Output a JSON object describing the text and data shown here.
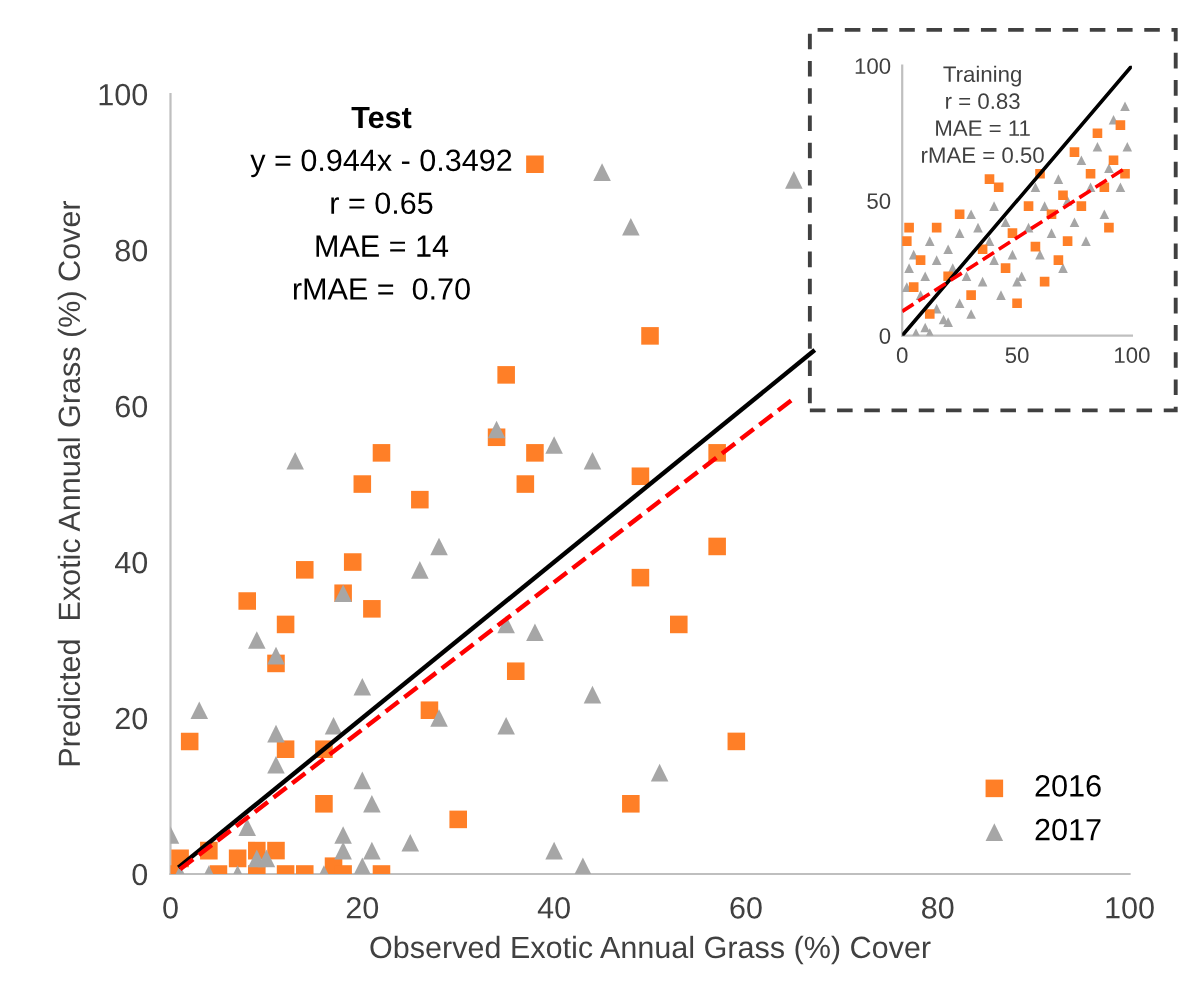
{
  "chart_data": [
    {
      "type": "scatter",
      "xlabel": "Observed Exotic Annual Grass (%) Cover",
      "ylabel": "Predicted  Exotic Annual Grass (%) Cover",
      "xlim": [
        0,
        100
      ],
      "ylim": [
        0,
        100
      ],
      "xticks": [
        0,
        20,
        40,
        60,
        80,
        100
      ],
      "yticks": [
        0,
        20,
        40,
        60,
        80,
        100
      ],
      "grid": false,
      "legend": "bottom right",
      "annotations": [
        "Test",
        "y = 0.944x - 0.3492",
        "r = 0.65",
        "MAE = 14",
        "rMAE =  0.70"
      ],
      "series": [
        {
          "name": "2016",
          "color": "#ff7f27",
          "marker": "square",
          "x": [
            35,
            34,
            38,
            38,
            22,
            20,
            26,
            37,
            14,
            19,
            8,
            12,
            18,
            21,
            11,
            36,
            27,
            2,
            12,
            16,
            16,
            30,
            1,
            4,
            7,
            9,
            11,
            17,
            0,
            5,
            9,
            12,
            14,
            18,
            22,
            50,
            49,
            57,
            57,
            49,
            53,
            59,
            48
          ],
          "values": [
            64,
            56,
            91,
            54,
            54,
            50,
            48,
            50,
            39,
            40,
            35,
            32,
            36,
            34,
            27,
            26,
            21,
            17,
            16,
            16,
            9,
            7,
            2,
            3,
            2,
            3,
            3,
            1,
            0,
            0,
            0,
            0,
            0,
            0,
            0,
            69,
            51,
            54,
            42,
            38,
            32,
            17,
            9
          ]
        },
        {
          "name": "2017",
          "color": "#a6a6a6",
          "marker": "triangle",
          "x": [
            0,
            3,
            13,
            34,
            28,
            26,
            18,
            9,
            11,
            35,
            38,
            20,
            17,
            28,
            35,
            11,
            11,
            20,
            21,
            8,
            18,
            25,
            18,
            21,
            9,
            10,
            20,
            1,
            4,
            7,
            16,
            45,
            65,
            48,
            40,
            44,
            44,
            51,
            40,
            43
          ],
          "values": [
            5,
            21,
            53,
            57,
            42,
            39,
            36,
            30,
            28,
            32,
            31,
            24,
            19,
            20,
            19,
            18,
            14,
            12,
            9,
            6,
            5,
            4,
            3,
            3,
            2,
            2,
            1,
            0,
            0,
            0,
            0,
            90,
            89,
            83,
            55,
            53,
            23,
            13,
            3,
            1
          ]
        },
        {
          "type": "line",
          "color": "#000000",
          "line_style": "solid",
          "marker": "none",
          "x": [
            1,
            67
          ],
          "values": [
            1,
            67
          ]
        },
        {
          "type": "line",
          "color": "#ff0000",
          "line_style": "dashed",
          "marker": "none",
          "x": [
            1,
            65
          ],
          "values": [
            0.6,
            61
          ]
        }
      ]
    },
    {
      "type": "scatter",
      "title": "Training",
      "annotations": [
        "r = 0.83",
        "MAE = 11",
        "rMAE = 0.50"
      ],
      "xlim": [
        0,
        100
      ],
      "ylim": [
        0,
        100
      ],
      "xticks": [
        0,
        50,
        100
      ],
      "yticks": [
        0,
        50,
        100
      ],
      "grid": false,
      "series": [
        {
          "color": "#a6a6a6",
          "marker": "triangle",
          "x": [
            6,
            2,
            3,
            12,
            5,
            8,
            10,
            10,
            12,
            15,
            15,
            18,
            20,
            20,
            22,
            25,
            25,
            28,
            30,
            30,
            33,
            35,
            38,
            40,
            40,
            43,
            45,
            48,
            50,
            52,
            55,
            58,
            60,
            62,
            65,
            68,
            70,
            72,
            75,
            78,
            80,
            82,
            85,
            88,
            90,
            92,
            95,
            97,
            98
          ],
          "values": [
            1,
            18,
            25,
            1,
            30,
            15,
            3,
            22,
            35,
            10,
            28,
            6,
            5,
            32,
            25,
            12,
            38,
            22,
            45,
            8,
            40,
            20,
            35,
            28,
            48,
            15,
            42,
            30,
            20,
            22,
            40,
            55,
            30,
            48,
            38,
            58,
            25,
            50,
            42,
            65,
            35,
            55,
            70,
            45,
            62,
            80,
            55,
            85,
            70
          ]
        },
        {
          "color": "#ff7f27",
          "marker": "square",
          "x": [
            2,
            3,
            5,
            8,
            12,
            15,
            20,
            25,
            30,
            35,
            38,
            42,
            45,
            48,
            50,
            55,
            58,
            60,
            62,
            65,
            68,
            70,
            72,
            75,
            78,
            82,
            85,
            88,
            90,
            92,
            95,
            97
          ],
          "values": [
            35,
            40,
            18,
            28,
            8,
            40,
            22,
            45,
            15,
            32,
            58,
            55,
            25,
            38,
            12,
            48,
            33,
            60,
            20,
            45,
            28,
            52,
            35,
            68,
            48,
            60,
            75,
            55,
            40,
            65,
            78,
            60
          ]
        },
        {
          "type": "line",
          "color": "#000000",
          "line_style": "solid",
          "marker": "none",
          "x": [
            0,
            100
          ],
          "values": [
            0,
            100
          ]
        },
        {
          "type": "line",
          "color": "#ff0000",
          "line_style": "dashed",
          "marker": "none",
          "x": [
            0,
            97
          ],
          "values": [
            9,
            62
          ]
        }
      ]
    }
  ]
}
